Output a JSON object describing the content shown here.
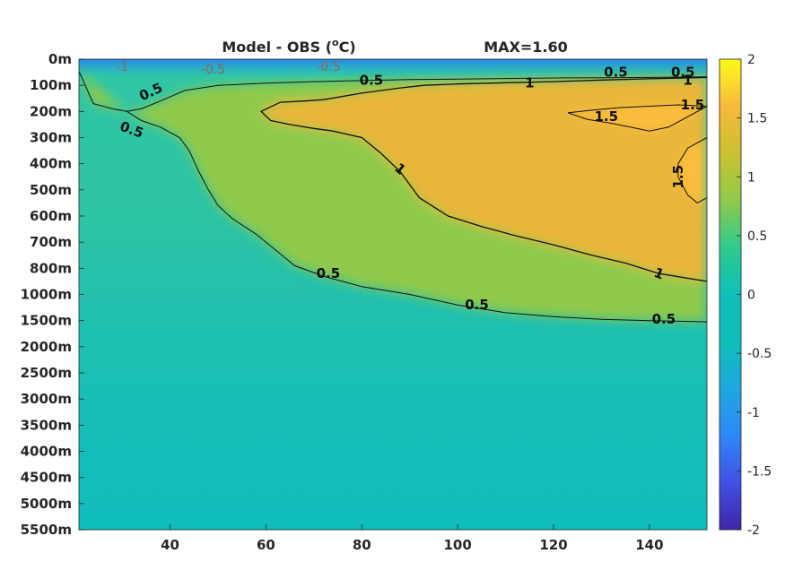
{
  "chart_data": {
    "type": "heatmap",
    "title": "Model - OBS (",
    "title_unit": "C)",
    "title_degree": "o",
    "max_label": "MAX=1.60",
    "xlabel": "",
    "ylabel": "",
    "xlim": [
      21,
      152
    ],
    "x_ticks": [
      40,
      60,
      80,
      100,
      120,
      140
    ],
    "depth_ticks": [
      "0m",
      "100m",
      "200m",
      "300m",
      "400m",
      "500m",
      "600m",
      "700m",
      "800m",
      "1000m",
      "1500m",
      "2000m",
      "2500m",
      "3000m",
      "3500m",
      "4000m",
      "4500m",
      "5000m",
      "5500m"
    ],
    "colorbar": {
      "clim": [
        -2,
        2
      ],
      "ticks": [
        "2",
        "1.5",
        "1",
        "0.5",
        "0",
        "-0.5",
        "-1",
        "-1.5",
        "-2"
      ],
      "colormap": [
        "#3e26a8",
        "#4250e4",
        "#2e87f7",
        "#1ea8dd",
        "#0dbfb8",
        "#2fcb8e",
        "#8fca4a",
        "#cbc12e",
        "#f8b93a",
        "#fadb2b",
        "#f9fb15"
      ]
    },
    "contours": [
      {
        "level": 0.5,
        "label": "0.5",
        "points": [
          [
            21,
            0.46
          ],
          [
            24,
            1.7
          ],
          [
            28,
            1.9
          ],
          [
            31,
            2.0
          ],
          [
            34,
            1.9
          ],
          [
            38,
            1.6
          ],
          [
            43,
            1.2
          ],
          [
            50,
            1.0
          ],
          [
            60,
            0.92
          ],
          [
            70,
            0.86
          ],
          [
            80,
            0.82
          ],
          [
            90,
            0.78
          ],
          [
            100,
            0.76
          ],
          [
            110,
            0.74
          ],
          [
            120,
            0.72
          ],
          [
            130,
            0.71
          ],
          [
            140,
            0.7
          ],
          [
            152,
            0.68
          ]
        ]
      },
      {
        "level": 0.5,
        "label": "0.5",
        "points": [
          [
            31,
            2.0
          ],
          [
            34,
            2.35
          ],
          [
            38,
            2.6
          ],
          [
            42,
            3.0
          ],
          [
            44,
            3.5
          ],
          [
            46,
            4.3
          ],
          [
            48,
            5.0
          ],
          [
            50,
            5.6
          ],
          [
            53,
            6.1
          ],
          [
            58,
            6.7
          ],
          [
            62,
            7.3
          ],
          [
            66,
            7.9
          ],
          [
            72,
            8.3
          ],
          [
            80,
            8.7
          ],
          [
            90,
            9.0
          ],
          [
            100,
            9.4
          ],
          [
            110,
            9.7
          ],
          [
            120,
            9.85
          ],
          [
            130,
            9.95
          ],
          [
            140,
            10.0
          ],
          [
            152,
            10.05
          ]
        ]
      },
      {
        "level": 1.0,
        "label": "1",
        "points": [
          [
            152,
            0.7
          ],
          [
            140,
            0.75
          ],
          [
            130,
            0.8
          ],
          [
            120,
            0.86
          ],
          [
            110,
            0.9
          ],
          [
            100,
            0.95
          ],
          [
            93,
            1.0
          ],
          [
            88,
            1.1
          ],
          [
            80,
            1.3
          ],
          [
            72,
            1.55
          ],
          [
            68,
            1.6
          ],
          [
            63,
            1.65
          ],
          [
            59,
            2.0
          ],
          [
            61,
            2.35
          ],
          [
            65,
            2.5
          ],
          [
            70,
            2.65
          ],
          [
            74,
            2.75
          ],
          [
            80,
            3.0
          ],
          [
            84,
            3.6
          ],
          [
            88,
            4.3
          ],
          [
            92,
            5.3
          ],
          [
            98,
            6.0
          ],
          [
            105,
            6.4
          ],
          [
            112,
            6.75
          ],
          [
            120,
            7.1
          ],
          [
            128,
            7.5
          ],
          [
            135,
            7.8
          ],
          [
            142,
            8.2
          ],
          [
            152,
            8.5
          ]
        ]
      },
      {
        "level": 1.5,
        "label": "1.5",
        "points": [
          [
            123,
            2.05
          ],
          [
            128,
            1.95
          ],
          [
            134,
            1.85
          ],
          [
            140,
            1.8
          ],
          [
            146,
            1.75
          ],
          [
            152,
            1.8
          ],
          [
            148,
            2.2
          ],
          [
            144,
            2.6
          ],
          [
            140,
            2.75
          ],
          [
            136,
            2.6
          ],
          [
            132,
            2.45
          ],
          [
            127,
            2.3
          ],
          [
            123,
            2.05
          ]
        ]
      },
      {
        "level": 1.5,
        "label": "1.5",
        "points": [
          [
            152,
            3.0
          ],
          [
            148,
            3.4
          ],
          [
            146,
            4.0
          ],
          [
            146,
            4.5
          ],
          [
            148,
            5.2
          ],
          [
            150,
            5.5
          ],
          [
            152,
            5.3
          ]
        ]
      }
    ],
    "contour_labels": [
      {
        "text": "0.5",
        "x": 82,
        "y": 0.8,
        "rot": 0
      },
      {
        "text": "0.5",
        "x": 133,
        "y": 0.5,
        "rot": 0
      },
      {
        "text": "0.5",
        "x": 147,
        "y": 0.5,
        "rot": 0
      },
      {
        "text": "0.5",
        "x": 36,
        "y": 1.25,
        "rot": -25
      },
      {
        "text": "0.5",
        "x": 32,
        "y": 2.7,
        "rot": 20
      },
      {
        "text": "0.5",
        "x": 73,
        "y": 8.2,
        "rot": 0
      },
      {
        "text": "0.5",
        "x": 104,
        "y": 9.4,
        "rot": 0
      },
      {
        "text": "0.5",
        "x": 143,
        "y": 9.95,
        "rot": 0
      },
      {
        "text": "1",
        "x": 115,
        "y": 0.9,
        "rot": 0
      },
      {
        "text": "1",
        "x": 148,
        "y": 0.8,
        "rot": 0
      },
      {
        "text": "1",
        "x": 88,
        "y": 4.2,
        "rot": 40
      },
      {
        "text": "1",
        "x": 142,
        "y": 8.2,
        "rot": 20
      },
      {
        "text": "1.5",
        "x": 149,
        "y": 1.75,
        "rot": 0
      },
      {
        "text": "1.5",
        "x": 131,
        "y": 2.2,
        "rot": 0
      },
      {
        "text": "1.5",
        "x": 146,
        "y": 4.5,
        "rot": -90
      }
    ],
    "surface_labels": [
      {
        "text": "-1",
        "x": 30,
        "y": 0.1
      },
      {
        "text": "-0.5",
        "x": 49,
        "y": 0.2
      },
      {
        "text": "-0.5",
        "x": 73,
        "y": 0.1
      }
    ]
  }
}
